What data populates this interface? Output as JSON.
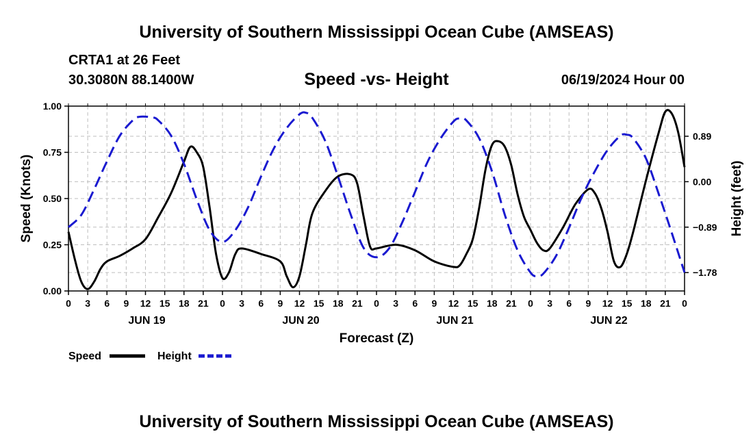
{
  "page": {
    "title_top": "University of Southern Mississippi Ocean Cube (AMSEAS)",
    "title_bottom": "University of Southern Mississippi Ocean Cube (AMSEAS)",
    "station": "CRTA1 at 26 Feet",
    "coords": "30.3080N  88.1400W",
    "run": "06/19/2024 Hour 00"
  },
  "colors": {
    "speed": "#000000",
    "height": "#1a1ad0"
  },
  "chart_data": {
    "type": "line",
    "title": "Speed -vs- Height",
    "xlabel": "Forecast (Z)",
    "ylabel": "Speed (Knots)",
    "y2label": "Height (feet)",
    "x_range": [
      0,
      96
    ],
    "ylim": [
      0,
      1.0
    ],
    "y2lim": [
      -2.14,
      1.48
    ],
    "y_ticks": [
      0,
      0.25,
      0.5,
      0.75,
      1.0
    ],
    "y_tick_labels": [
      "0.00",
      "0.25",
      "0.50",
      "0.75",
      "1.00"
    ],
    "y2_ticks": [
      0.89,
      0.0,
      -0.89,
      -1.78
    ],
    "y2_tick_labels": [
      "0.89",
      "0.00",
      "−0.89",
      "−1.78"
    ],
    "x_ticks": [
      0,
      3,
      6,
      9,
      12,
      15,
      18,
      21,
      24,
      27,
      30,
      33,
      36,
      39,
      42,
      45,
      48,
      51,
      54,
      57,
      60,
      63,
      66,
      69,
      72,
      75,
      78,
      81,
      84,
      87,
      90,
      93,
      96
    ],
    "x_tick_labels": [
      "0",
      "3",
      "6",
      "9",
      "12",
      "15",
      "18",
      "21",
      "0",
      "3",
      "6",
      "9",
      "12",
      "15",
      "18",
      "21",
      "0",
      "3",
      "6",
      "9",
      "12",
      "15",
      "18",
      "21",
      "0",
      "3",
      "6",
      "9",
      "12",
      "15",
      "18",
      "21",
      "0"
    ],
    "day_labels": [
      {
        "x": 12,
        "label": "JUN 19"
      },
      {
        "x": 36,
        "label": "JUN 20"
      },
      {
        "x": 60,
        "label": "JUN 21"
      },
      {
        "x": 84,
        "label": "JUN 22"
      }
    ],
    "legend": [
      "Speed",
      "Height"
    ],
    "series": [
      {
        "name": "Speed",
        "axis": "left",
        "style": "solid",
        "points": [
          [
            0,
            0.32
          ],
          [
            1,
            0.17
          ],
          [
            2,
            0.05
          ],
          [
            3,
            0.01
          ],
          [
            4,
            0.05
          ],
          [
            5,
            0.12
          ],
          [
            6,
            0.16
          ],
          [
            8,
            0.19
          ],
          [
            10,
            0.23
          ],
          [
            12,
            0.28
          ],
          [
            14,
            0.4
          ],
          [
            16,
            0.53
          ],
          [
            18,
            0.7
          ],
          [
            19,
            0.78
          ],
          [
            20,
            0.75
          ],
          [
            21,
            0.67
          ],
          [
            22,
            0.45
          ],
          [
            23,
            0.2
          ],
          [
            24,
            0.07
          ],
          [
            25,
            0.1
          ],
          [
            26,
            0.2
          ],
          [
            27,
            0.23
          ],
          [
            30,
            0.2
          ],
          [
            33,
            0.16
          ],
          [
            34,
            0.08
          ],
          [
            35,
            0.02
          ],
          [
            36,
            0.08
          ],
          [
            37,
            0.25
          ],
          [
            38,
            0.42
          ],
          [
            40,
            0.54
          ],
          [
            42,
            0.62
          ],
          [
            44,
            0.63
          ],
          [
            45,
            0.58
          ],
          [
            46,
            0.4
          ],
          [
            47,
            0.24
          ],
          [
            48,
            0.23
          ],
          [
            51,
            0.25
          ],
          [
            54,
            0.22
          ],
          [
            57,
            0.16
          ],
          [
            60,
            0.13
          ],
          [
            61,
            0.14
          ],
          [
            62,
            0.2
          ],
          [
            63,
            0.28
          ],
          [
            64,
            0.45
          ],
          [
            65,
            0.66
          ],
          [
            66,
            0.79
          ],
          [
            67,
            0.81
          ],
          [
            68,
            0.78
          ],
          [
            69,
            0.68
          ],
          [
            70,
            0.52
          ],
          [
            71,
            0.4
          ],
          [
            72,
            0.33
          ],
          [
            73,
            0.26
          ],
          [
            74,
            0.22
          ],
          [
            75,
            0.23
          ],
          [
            77,
            0.34
          ],
          [
            79,
            0.47
          ],
          [
            81,
            0.55
          ],
          [
            82,
            0.53
          ],
          [
            83,
            0.45
          ],
          [
            84,
            0.32
          ],
          [
            85,
            0.16
          ],
          [
            86,
            0.13
          ],
          [
            87,
            0.2
          ],
          [
            88,
            0.32
          ],
          [
            90,
            0.6
          ],
          [
            92,
            0.86
          ],
          [
            93,
            0.97
          ],
          [
            94,
            0.96
          ],
          [
            95,
            0.86
          ],
          [
            96,
            0.67
          ]
        ]
      },
      {
        "name": "Height",
        "axis": "right",
        "style": "dashed",
        "points": [
          [
            0,
            -0.89
          ],
          [
            2,
            -0.65
          ],
          [
            4,
            -0.15
          ],
          [
            6,
            0.4
          ],
          [
            8,
            0.9
          ],
          [
            10,
            1.2
          ],
          [
            11,
            1.27
          ],
          [
            13,
            1.26
          ],
          [
            14,
            1.2
          ],
          [
            16,
            0.9
          ],
          [
            18,
            0.35
          ],
          [
            20,
            -0.35
          ],
          [
            22,
            -0.95
          ],
          [
            24,
            -1.18
          ],
          [
            26,
            -0.95
          ],
          [
            28,
            -0.5
          ],
          [
            30,
            0.1
          ],
          [
            32,
            0.65
          ],
          [
            34,
            1.05
          ],
          [
            36,
            1.32
          ],
          [
            37,
            1.35
          ],
          [
            38,
            1.25
          ],
          [
            40,
            0.8
          ],
          [
            42,
            0.1
          ],
          [
            44,
            -0.65
          ],
          [
            46,
            -1.3
          ],
          [
            48,
            -1.48
          ],
          [
            50,
            -1.3
          ],
          [
            52,
            -0.8
          ],
          [
            54,
            -0.2
          ],
          [
            56,
            0.4
          ],
          [
            58,
            0.85
          ],
          [
            60,
            1.18
          ],
          [
            61,
            1.24
          ],
          [
            62,
            1.2
          ],
          [
            64,
            0.85
          ],
          [
            66,
            0.2
          ],
          [
            68,
            -0.65
          ],
          [
            70,
            -1.35
          ],
          [
            72,
            -1.78
          ],
          [
            73,
            -1.85
          ],
          [
            74,
            -1.8
          ],
          [
            76,
            -1.45
          ],
          [
            78,
            -0.9
          ],
          [
            80,
            -0.3
          ],
          [
            82,
            0.2
          ],
          [
            84,
            0.62
          ],
          [
            86,
            0.9
          ],
          [
            87,
            0.92
          ],
          [
            88,
            0.85
          ],
          [
            90,
            0.45
          ],
          [
            92,
            -0.25
          ],
          [
            94,
            -1.0
          ],
          [
            96,
            -1.78
          ]
        ]
      }
    ]
  }
}
